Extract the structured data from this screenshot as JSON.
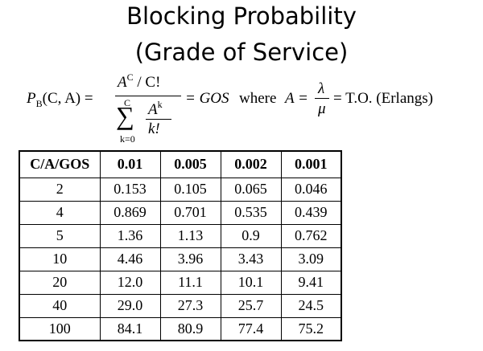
{
  "title_line1": "Blocking Probability",
  "title_line2": "(Grade of Service)",
  "formula": {
    "lhs_p": "P",
    "lhs_sub": "B",
    "lhs_args": "(C, A) =",
    "num_a": "A",
    "num_sup": "C",
    "num_rest": "/ C!",
    "den_sum": "∑",
    "den_upper": "C",
    "den_lower": "k=0",
    "den_a": "A",
    "den_sup": "k",
    "den_kfact": "k!",
    "eq_gos": "= GOS",
    "where": "where",
    "where_a": "A =",
    "lambda": "λ",
    "mu": "μ",
    "to": "=  T.O. (Erlangs)"
  },
  "table": {
    "headers": [
      "C/A/GOS",
      "0.01",
      "0.005",
      "0.002",
      "0.001"
    ],
    "rows": [
      [
        "2",
        "0.153",
        "0.105",
        "0.065",
        "0.046"
      ],
      [
        "4",
        "0.869",
        "0.701",
        "0.535",
        "0.439"
      ],
      [
        "5",
        "1.36",
        "1.13",
        "0.9",
        "0.762"
      ],
      [
        "10",
        "4.46",
        "3.96",
        "3.43",
        "3.09"
      ],
      [
        "20",
        "12.0",
        "11.1",
        "10.1",
        "9.41"
      ],
      [
        "40",
        "29.0",
        "27.3",
        "25.7",
        "24.5"
      ],
      [
        "100",
        "84.1",
        "80.9",
        "77.4",
        "75.2"
      ]
    ]
  }
}
